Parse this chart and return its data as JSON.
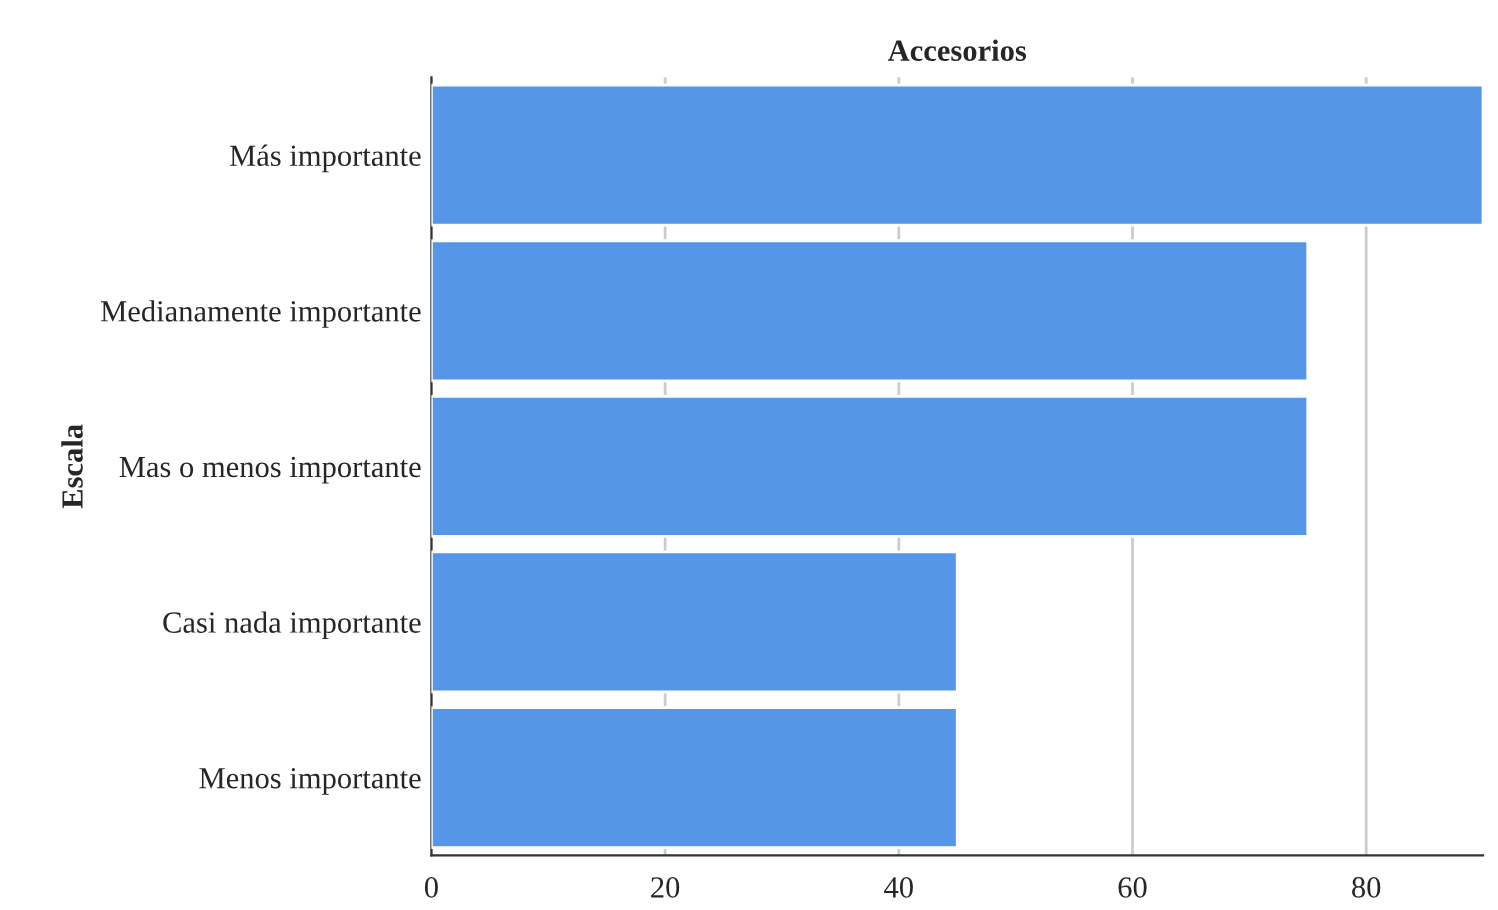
{
  "chart_data": {
    "type": "bar",
    "orientation": "horizontal",
    "title": "Accesorios",
    "ylabel": "Escala",
    "categories": [
      "Más importante",
      "Medianamente importante",
      "Mas o menos importante",
      "Casi nada importante",
      "Menos importante"
    ],
    "values": [
      90,
      75,
      75,
      45,
      45
    ],
    "color": "#5596e6",
    "xlim": [
      0,
      90
    ],
    "xticks": [
      0,
      20,
      40,
      60,
      80
    ],
    "grid": "x"
  }
}
